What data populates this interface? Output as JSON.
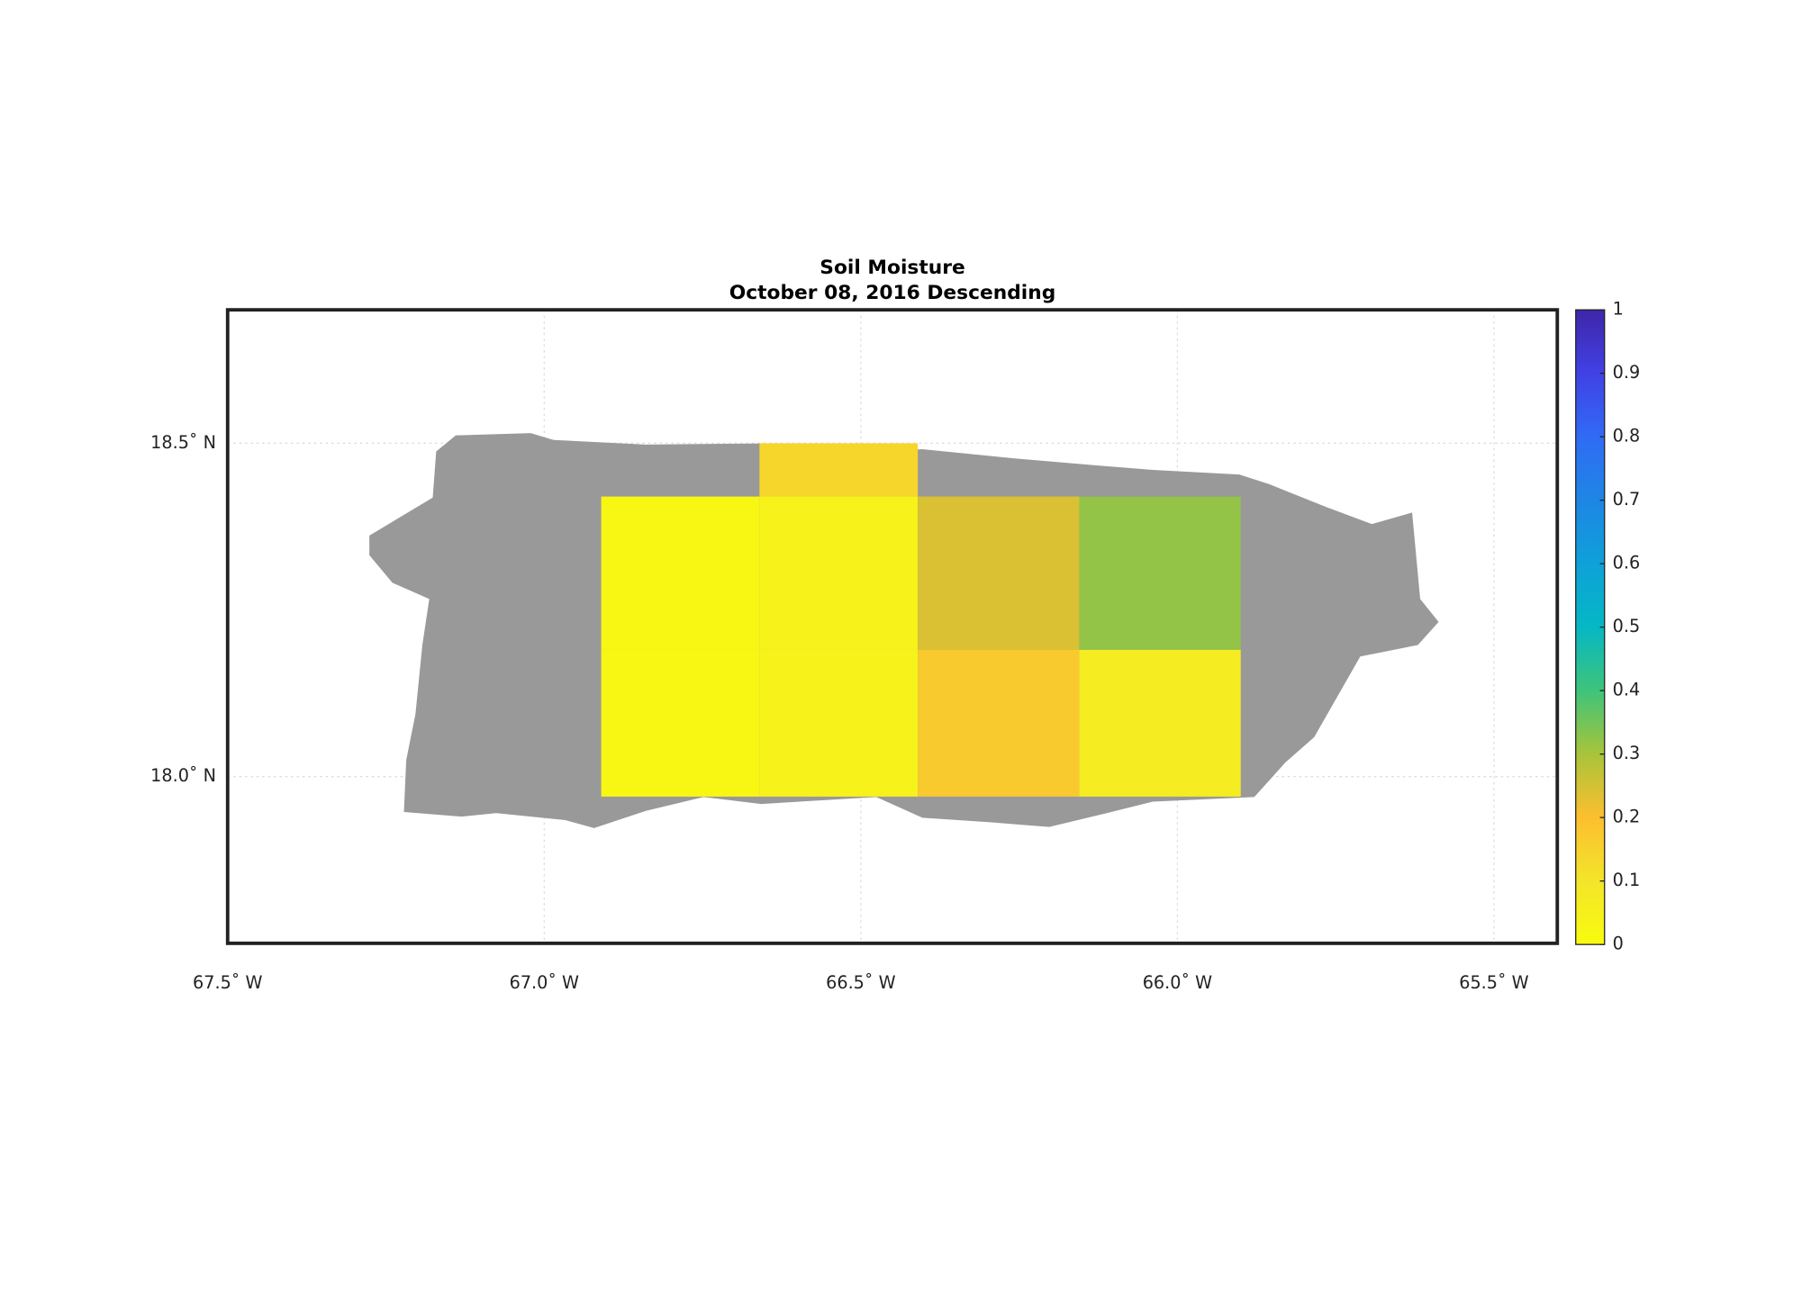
{
  "chart_data": {
    "type": "gridmap",
    "title": "Soil Moisture",
    "subtitle": "October 08, 2016 Descending",
    "xlim": [
      -67.5,
      -65.4
    ],
    "ylim": [
      17.75,
      18.7
    ],
    "xticks": [
      {
        "value": -67.5,
        "label": "67.5˚ W"
      },
      {
        "value": -67.0,
        "label": "67.0˚ W"
      },
      {
        "value": -66.5,
        "label": "66.5˚ W"
      },
      {
        "value": -66.0,
        "label": "66.0˚ W"
      },
      {
        "value": -65.5,
        "label": "65.5˚ W"
      }
    ],
    "yticks": [
      {
        "value": 18.0,
        "label": "18.0˚ N"
      },
      {
        "value": 18.5,
        "label": "18.5˚ N"
      }
    ],
    "grid": true,
    "cells": [
      {
        "x": [
          -66.91,
          -66.66
        ],
        "y": [
          18.19,
          18.42
        ],
        "value": 0.02
      },
      {
        "x": [
          -66.91,
          -66.66
        ],
        "y": [
          17.97,
          18.19
        ],
        "value": 0.02
      },
      {
        "x": [
          -66.66,
          -66.41
        ],
        "y": [
          18.42,
          18.5
        ],
        "value": 0.14
      },
      {
        "x": [
          -66.66,
          -66.41
        ],
        "y": [
          18.19,
          18.42
        ],
        "value": 0.04
      },
      {
        "x": [
          -66.66,
          -66.41
        ],
        "y": [
          17.97,
          18.19
        ],
        "value": 0.04
      },
      {
        "x": [
          -66.41,
          -66.155
        ],
        "y": [
          18.19,
          18.42
        ],
        "value": 0.24
      },
      {
        "x": [
          -66.41,
          -66.155
        ],
        "y": [
          17.97,
          18.19
        ],
        "value": 0.17
      },
      {
        "x": [
          -66.155,
          -65.9
        ],
        "y": [
          18.19,
          18.42
        ],
        "value": 0.32
      },
      {
        "x": [
          -66.155,
          -65.9
        ],
        "y": [
          17.97,
          18.19
        ],
        "value": 0.07
      }
    ],
    "clim": [
      0,
      1
    ],
    "cticks": [
      0,
      0.1,
      0.2,
      0.3,
      0.4,
      0.5,
      0.6,
      0.7,
      0.8,
      0.9,
      1
    ],
    "colormap": [
      "#f9fb0e",
      "#f3e52a",
      "#fcbf2f",
      "#a8c43a",
      "#3ec47a",
      "#05b8c4",
      "#0ea1d9",
      "#1e86e5",
      "#306bf5",
      "#4141e6",
      "#3e26a8"
    ],
    "land_color": "#999999"
  }
}
